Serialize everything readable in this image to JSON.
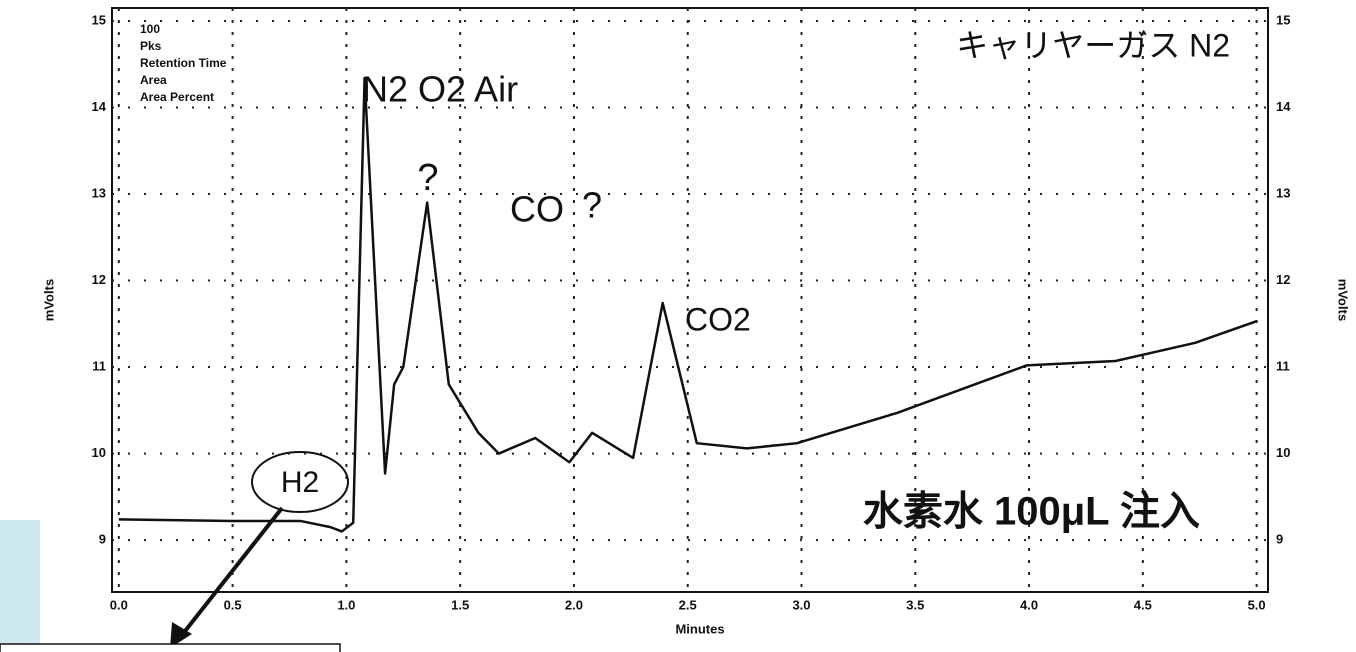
{
  "chart_data": {
    "type": "line",
    "x": [
      0,
      0.5,
      0.8,
      0.93,
      0.98,
      1.03,
      1.08,
      1.17,
      1.21,
      1.25,
      1.355,
      1.45,
      1.58,
      1.67,
      1.83,
      1.98,
      2.08,
      2.26,
      2.39,
      2.54,
      2.76,
      2.98,
      3.42,
      3.99,
      4.38,
      4.73,
      5.0
    ],
    "series": [
      {
        "color": "#111111",
        "values": [
          9.24,
          9.22,
          9.22,
          9.15,
          9.1,
          9.2,
          14.34,
          9.77,
          10.8,
          11.0,
          12.9,
          10.8,
          10.24,
          10.0,
          10.18,
          9.9,
          10.24,
          9.95,
          11.74,
          10.12,
          10.06,
          10.12,
          10.47,
          11.02,
          11.07,
          11.28,
          11.53
        ]
      }
    ],
    "xlim": [
      -0.03,
      5.05
    ],
    "ylim": [
      8.4,
      15.15
    ],
    "xticks": [
      {
        "value": 0,
        "label": "0.0"
      },
      {
        "value": 0.5,
        "label": "0.5"
      },
      {
        "value": 1,
        "label": "1.0"
      },
      {
        "value": 1.5,
        "label": "1.5"
      },
      {
        "value": 2,
        "label": "2.0"
      },
      {
        "value": 2.5,
        "label": "2.5"
      },
      {
        "value": 3,
        "label": "3.0"
      },
      {
        "value": 3.5,
        "label": "3.5"
      },
      {
        "value": 4,
        "label": "4.0"
      },
      {
        "value": 4.5,
        "label": "4.5"
      },
      {
        "value": 5,
        "label": "5.0"
      }
    ],
    "yticks": [
      9,
      10,
      11,
      12,
      13,
      14,
      15
    ],
    "grid": true,
    "xlabel": "Minutes",
    "ylabel": "mVolts",
    "y2label": "mVolts",
    "legend_lines": [
      "100",
      "Pks",
      "Retention Time",
      "Area",
      "Area Percent"
    ],
    "annotations": [
      "N2 O2 Air",
      "?",
      "CO",
      "?",
      "CO2",
      "H2",
      "キャリヤーガス N2",
      "水素水 100μL 注入"
    ]
  }
}
